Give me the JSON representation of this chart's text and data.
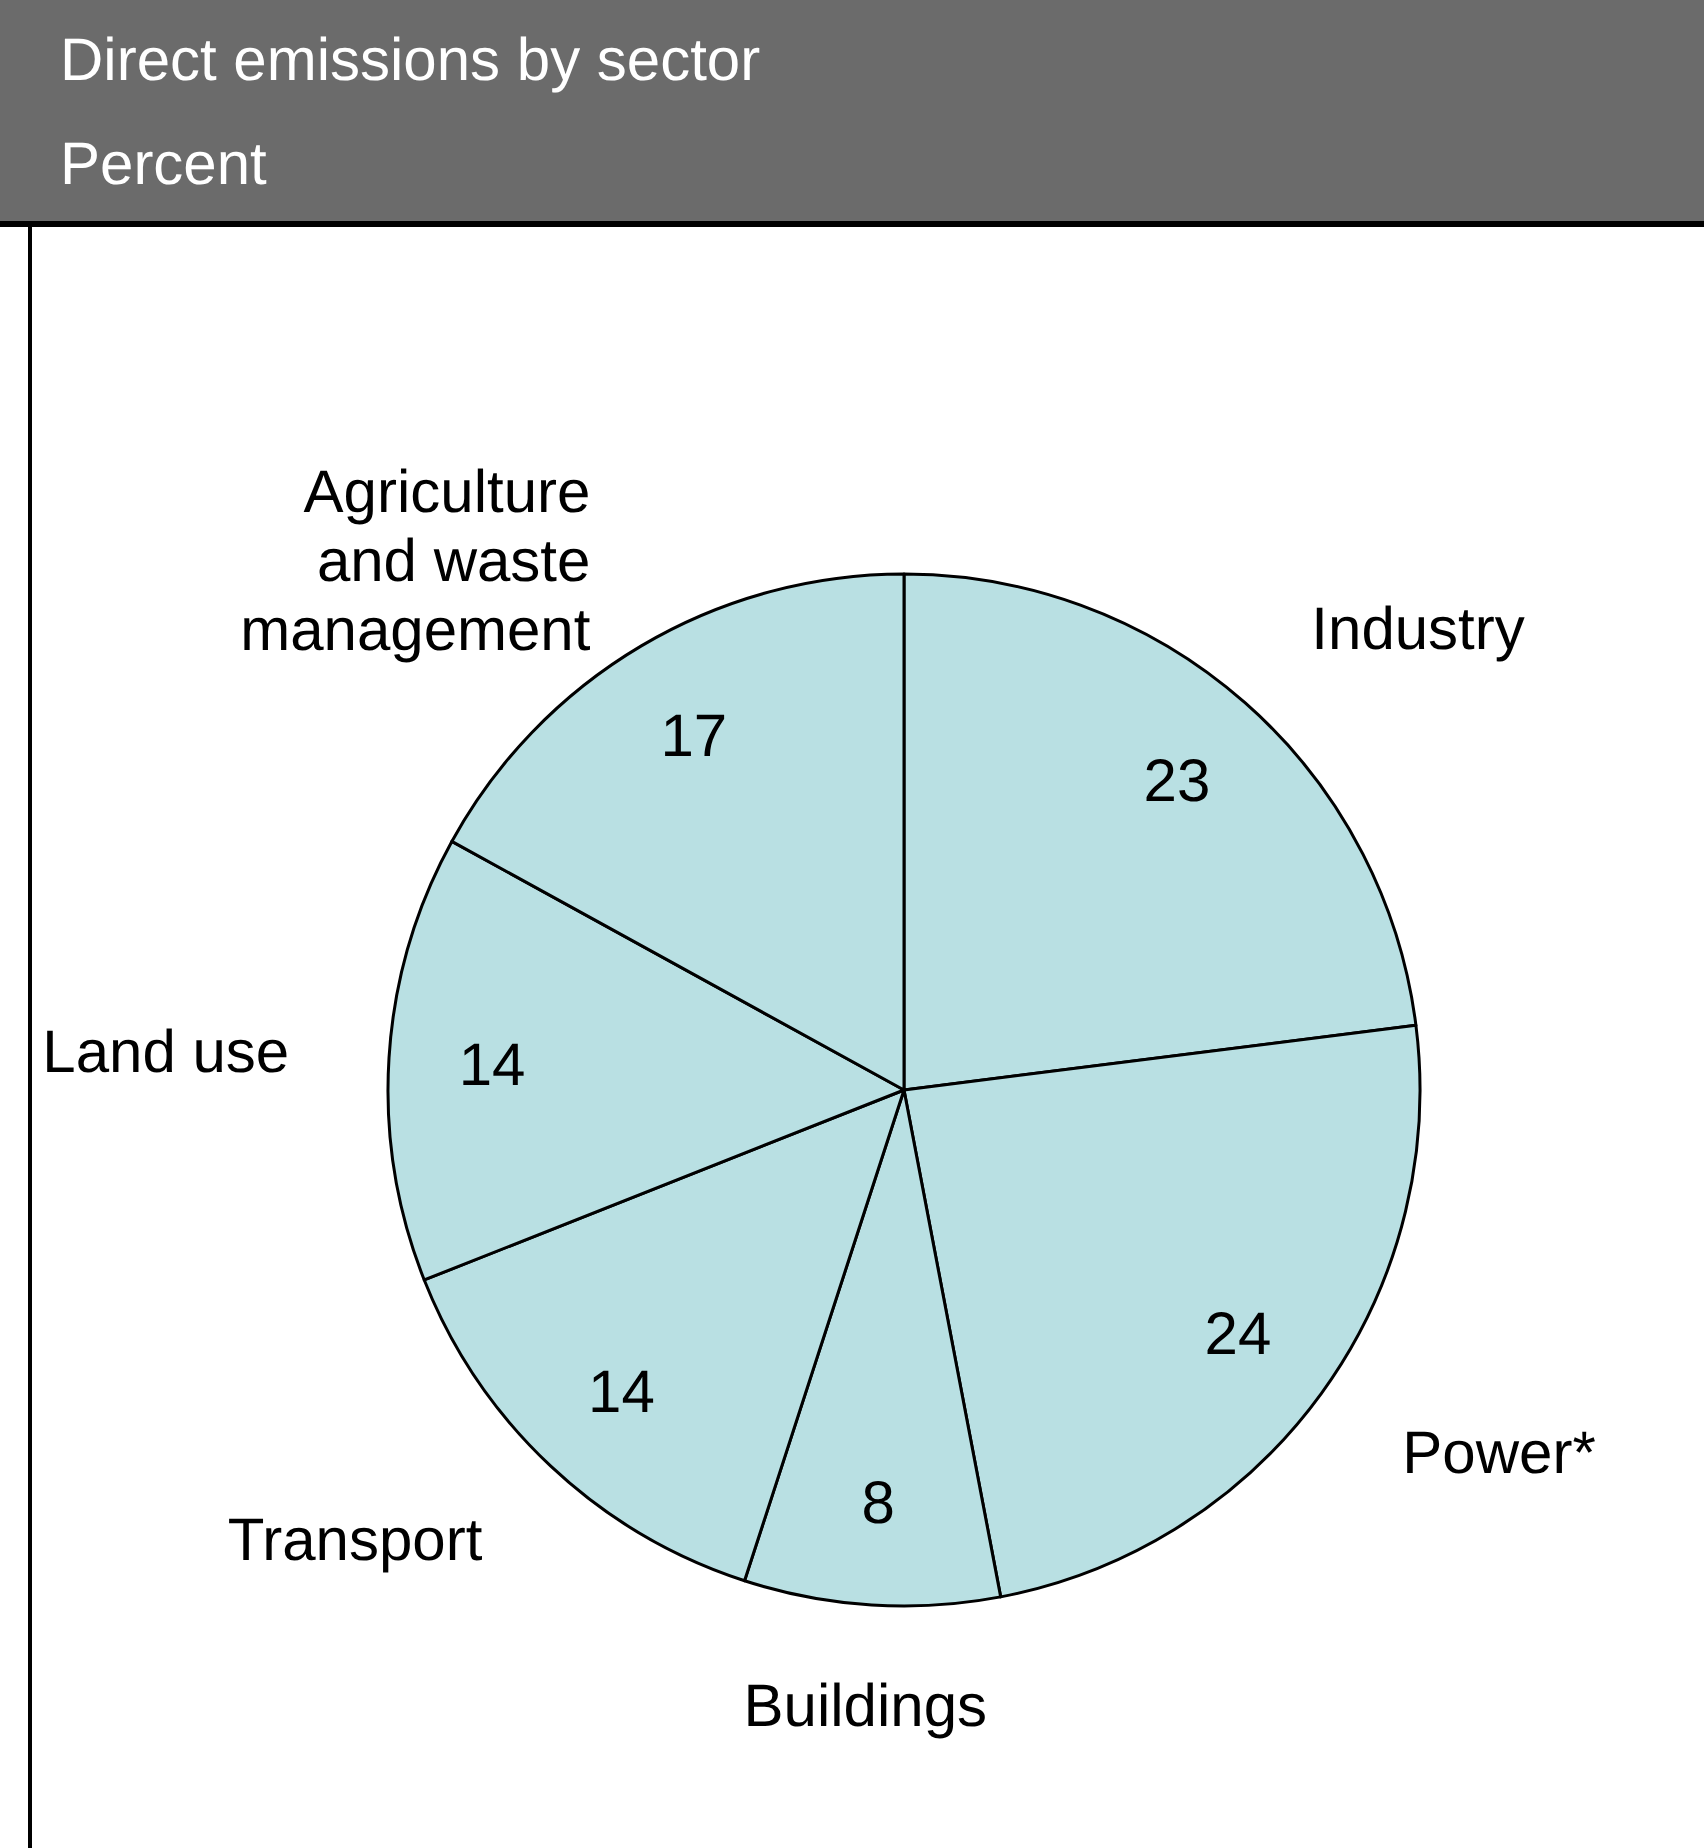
{
  "chart_data": {
    "type": "pie",
    "title": "Direct emissions by sector",
    "subtitle": "Percent",
    "categories": [
      "Industry",
      "Power*",
      "Buildings",
      "Transport",
      "Land use",
      "Agriculture and waste management"
    ],
    "values": [
      23,
      24,
      8,
      14,
      14,
      17
    ],
    "colors": [
      "#b9e0e3",
      "#b9e0e3",
      "#b9e0e3",
      "#b9e0e3",
      "#b9e0e3",
      "#b9e0e3"
    ],
    "data_labels": true
  }
}
